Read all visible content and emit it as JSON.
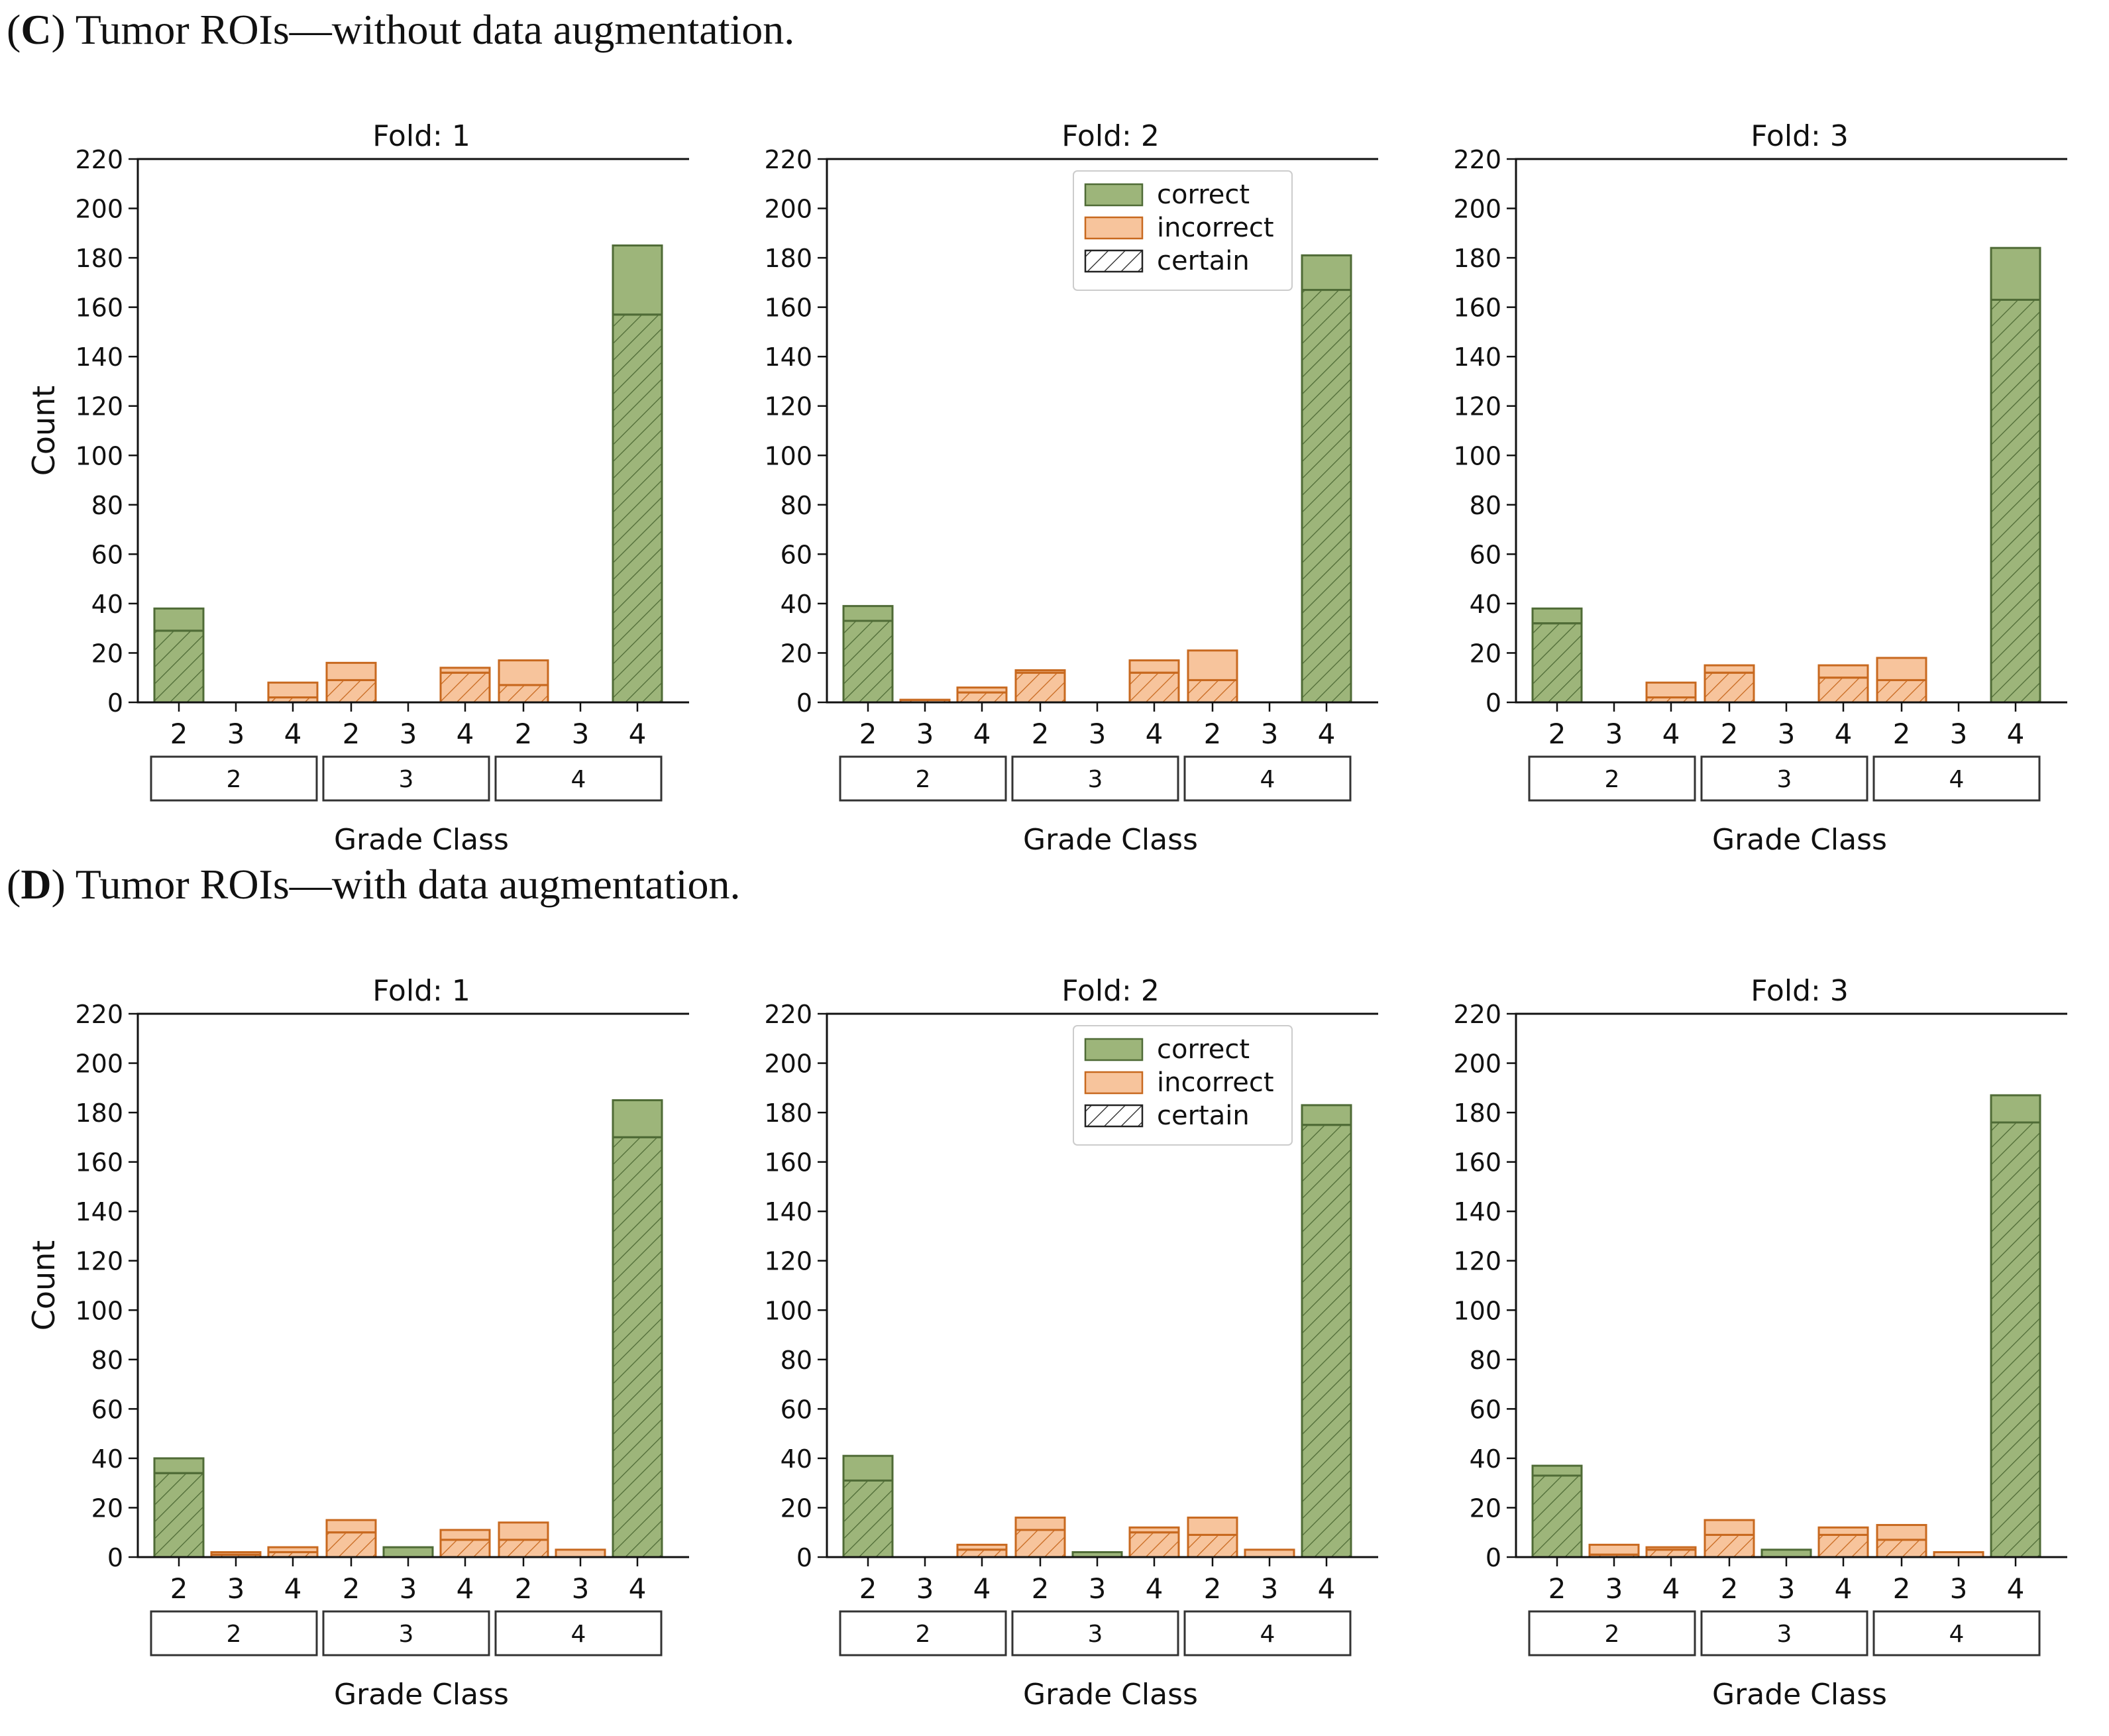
{
  "sections": [
    {
      "letter": "C",
      "open_paren": "(",
      "close_paren": ")",
      "title": " Tumor ROIs—without data augmentation."
    },
    {
      "letter": "D",
      "open_paren": "(",
      "close_paren": ")",
      "title": " Tumor ROIs—with data augmentation."
    }
  ],
  "colors": {
    "correct_fill": "#9db57a",
    "correct_edge": "#4f6b36",
    "incorrect_fill": "#f7c49c",
    "incorrect_edge": "#c8691f"
  },
  "legend": {
    "correct": "correct",
    "incorrect": "incorrect",
    "certain": "certain"
  },
  "chart_data": [
    {
      "type": "bar",
      "section": "C",
      "title": "Fold: 1",
      "xlabel": "Grade Class",
      "ylabel": "Count",
      "ylim": [
        0,
        220
      ],
      "yticks": [
        0,
        20,
        40,
        60,
        80,
        100,
        120,
        140,
        160,
        180,
        200,
        220
      ],
      "groups": [
        "2",
        "3",
        "4"
      ],
      "predicted": [
        "2",
        "3",
        "4"
      ],
      "total": [
        38,
        0,
        8,
        16,
        0,
        14,
        17,
        0,
        185
      ],
      "certain": [
        29,
        0,
        2,
        9,
        0,
        12,
        7,
        0,
        157
      ],
      "legend": false
    },
    {
      "type": "bar",
      "section": "C",
      "title": "Fold: 2",
      "xlabel": "Grade Class",
      "ylabel": "",
      "ylim": [
        0,
        220
      ],
      "yticks": [
        0,
        20,
        40,
        60,
        80,
        100,
        120,
        140,
        160,
        180,
        200,
        220
      ],
      "groups": [
        "2",
        "3",
        "4"
      ],
      "predicted": [
        "2",
        "3",
        "4"
      ],
      "total": [
        39,
        1,
        6,
        13,
        0,
        17,
        21,
        0,
        181
      ],
      "certain": [
        33,
        1,
        4,
        12,
        0,
        12,
        9,
        0,
        167
      ],
      "legend": true
    },
    {
      "type": "bar",
      "section": "C",
      "title": "Fold: 3",
      "xlabel": "Grade Class",
      "ylabel": "",
      "ylim": [
        0,
        220
      ],
      "yticks": [
        0,
        20,
        40,
        60,
        80,
        100,
        120,
        140,
        160,
        180,
        200,
        220
      ],
      "groups": [
        "2",
        "3",
        "4"
      ],
      "predicted": [
        "2",
        "3",
        "4"
      ],
      "total": [
        38,
        0,
        8,
        15,
        0,
        15,
        18,
        0,
        184
      ],
      "certain": [
        32,
        0,
        2,
        12,
        0,
        10,
        9,
        0,
        163
      ],
      "legend": false
    },
    {
      "type": "bar",
      "section": "D",
      "title": "Fold: 1",
      "xlabel": "Grade Class",
      "ylabel": "Count",
      "ylim": [
        0,
        220
      ],
      "yticks": [
        0,
        20,
        40,
        60,
        80,
        100,
        120,
        140,
        160,
        180,
        200,
        220
      ],
      "groups": [
        "2",
        "3",
        "4"
      ],
      "predicted": [
        "2",
        "3",
        "4"
      ],
      "total": [
        40,
        2,
        4,
        15,
        4,
        11,
        14,
        3,
        185
      ],
      "certain": [
        34,
        1,
        2,
        10,
        0,
        7,
        7,
        0,
        170
      ],
      "legend": false
    },
    {
      "type": "bar",
      "section": "D",
      "title": "Fold: 2",
      "xlabel": "Grade Class",
      "ylabel": "",
      "ylim": [
        0,
        220
      ],
      "yticks": [
        0,
        20,
        40,
        60,
        80,
        100,
        120,
        140,
        160,
        180,
        200,
        220
      ],
      "groups": [
        "2",
        "3",
        "4"
      ],
      "predicted": [
        "2",
        "3",
        "4"
      ],
      "total": [
        41,
        0,
        5,
        16,
        2,
        12,
        16,
        3,
        183
      ],
      "certain": [
        31,
        0,
        3,
        11,
        0,
        10,
        9,
        0,
        175
      ],
      "legend": true
    },
    {
      "type": "bar",
      "section": "D",
      "title": "Fold: 3",
      "xlabel": "Grade Class",
      "ylabel": "",
      "ylim": [
        0,
        220
      ],
      "yticks": [
        0,
        20,
        40,
        60,
        80,
        100,
        120,
        140,
        160,
        180,
        200,
        220
      ],
      "groups": [
        "2",
        "3",
        "4"
      ],
      "predicted": [
        "2",
        "3",
        "4"
      ],
      "total": [
        37,
        5,
        4,
        15,
        3,
        12,
        13,
        2,
        187
      ],
      "certain": [
        33,
        1,
        3,
        9,
        0,
        9,
        7,
        0,
        176
      ],
      "legend": false
    }
  ]
}
